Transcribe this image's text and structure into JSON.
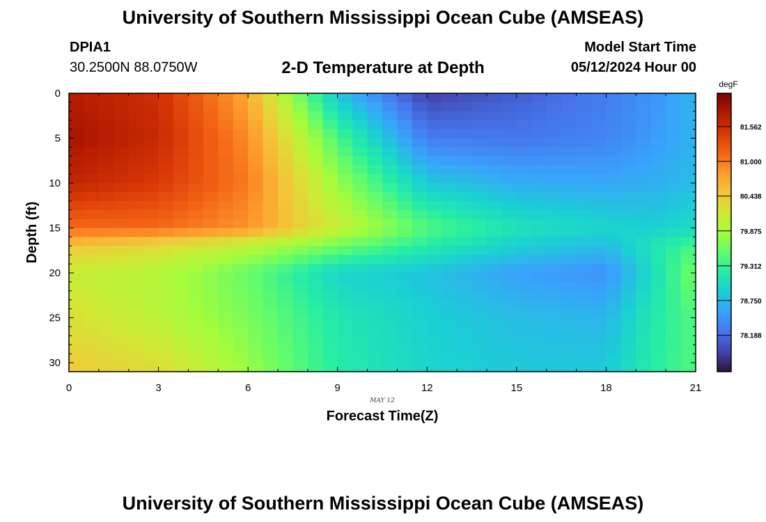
{
  "header": {
    "title": "University of Southern Mississippi Ocean Cube (AMSEAS)",
    "station": "DPIA1",
    "coordinates": "30.2500N  88.0750W",
    "plot_title": "2-D Temperature at Depth",
    "start_label": "Model Start Time",
    "start_value": "05/12/2024 Hour 00"
  },
  "footer": {
    "title": "University of Southern Mississippi Ocean Cube (AMSEAS)"
  },
  "chart_data": {
    "type": "heatmap",
    "title": "2-D Temperature at Depth",
    "xlabel": "Forecast Time(Z)",
    "ylabel": "Depth (ft)",
    "date_label": "MAY 12",
    "xlim": [
      0,
      21
    ],
    "ylim": [
      31,
      0
    ],
    "xticks": [
      0,
      3,
      6,
      9,
      12,
      15,
      18,
      21
    ],
    "yticks": [
      0,
      5,
      10,
      15,
      20,
      25,
      30
    ],
    "colorbar": {
      "unit": "degF",
      "min": 77.6,
      "max": 82.1,
      "ticks": [
        "81.562",
        "81.000",
        "80.438",
        "79.875",
        "79.312",
        "78.750",
        "78.188"
      ],
      "colors": [
        "#30123b",
        "#4145ab",
        "#4675ed",
        "#39a2fc",
        "#1bcfd4",
        "#24eca6",
        "#61fc6c",
        "#a4fc3b",
        "#d1e834",
        "#f3c63a",
        "#fe9b2d",
        "#f36315",
        "#d93806",
        "#b11901",
        "#7a0402"
      ]
    },
    "grid": {
      "x_step_hours": 0.5,
      "depth_step_ft": 1,
      "columns": 42,
      "rows": 31
    },
    "anchor_temperatures_degF": {
      "times": [
        0,
        3,
        6,
        9,
        12,
        15,
        18,
        19.5,
        21
      ],
      "depths": [
        0,
        5,
        10,
        15,
        17,
        20,
        25,
        31
      ],
      "values": [
        [
          81.75,
          81.55,
          80.7,
          78.8,
          77.9,
          78.1,
          78.3,
          78.45,
          78.7
        ],
        [
          81.85,
          81.6,
          80.9,
          79.4,
          78.3,
          78.25,
          78.35,
          78.5,
          78.7
        ],
        [
          81.65,
          81.45,
          81.0,
          79.8,
          78.85,
          78.65,
          78.6,
          78.65,
          78.75
        ],
        [
          81.1,
          81.1,
          80.85,
          80.1,
          79.45,
          79.1,
          78.95,
          78.9,
          79.0
        ],
        [
          80.5,
          80.3,
          80.0,
          79.6,
          79.2,
          78.9,
          78.75,
          79.1,
          79.4
        ],
        [
          80.1,
          79.95,
          79.55,
          78.95,
          78.8,
          78.55,
          78.45,
          79.0,
          79.65
        ],
        [
          80.25,
          80.0,
          79.65,
          79.15,
          78.9,
          78.75,
          78.7,
          79.15,
          79.45
        ],
        [
          80.45,
          80.3,
          79.8,
          79.2,
          78.95,
          78.85,
          78.85,
          79.2,
          79.45
        ]
      ]
    }
  }
}
